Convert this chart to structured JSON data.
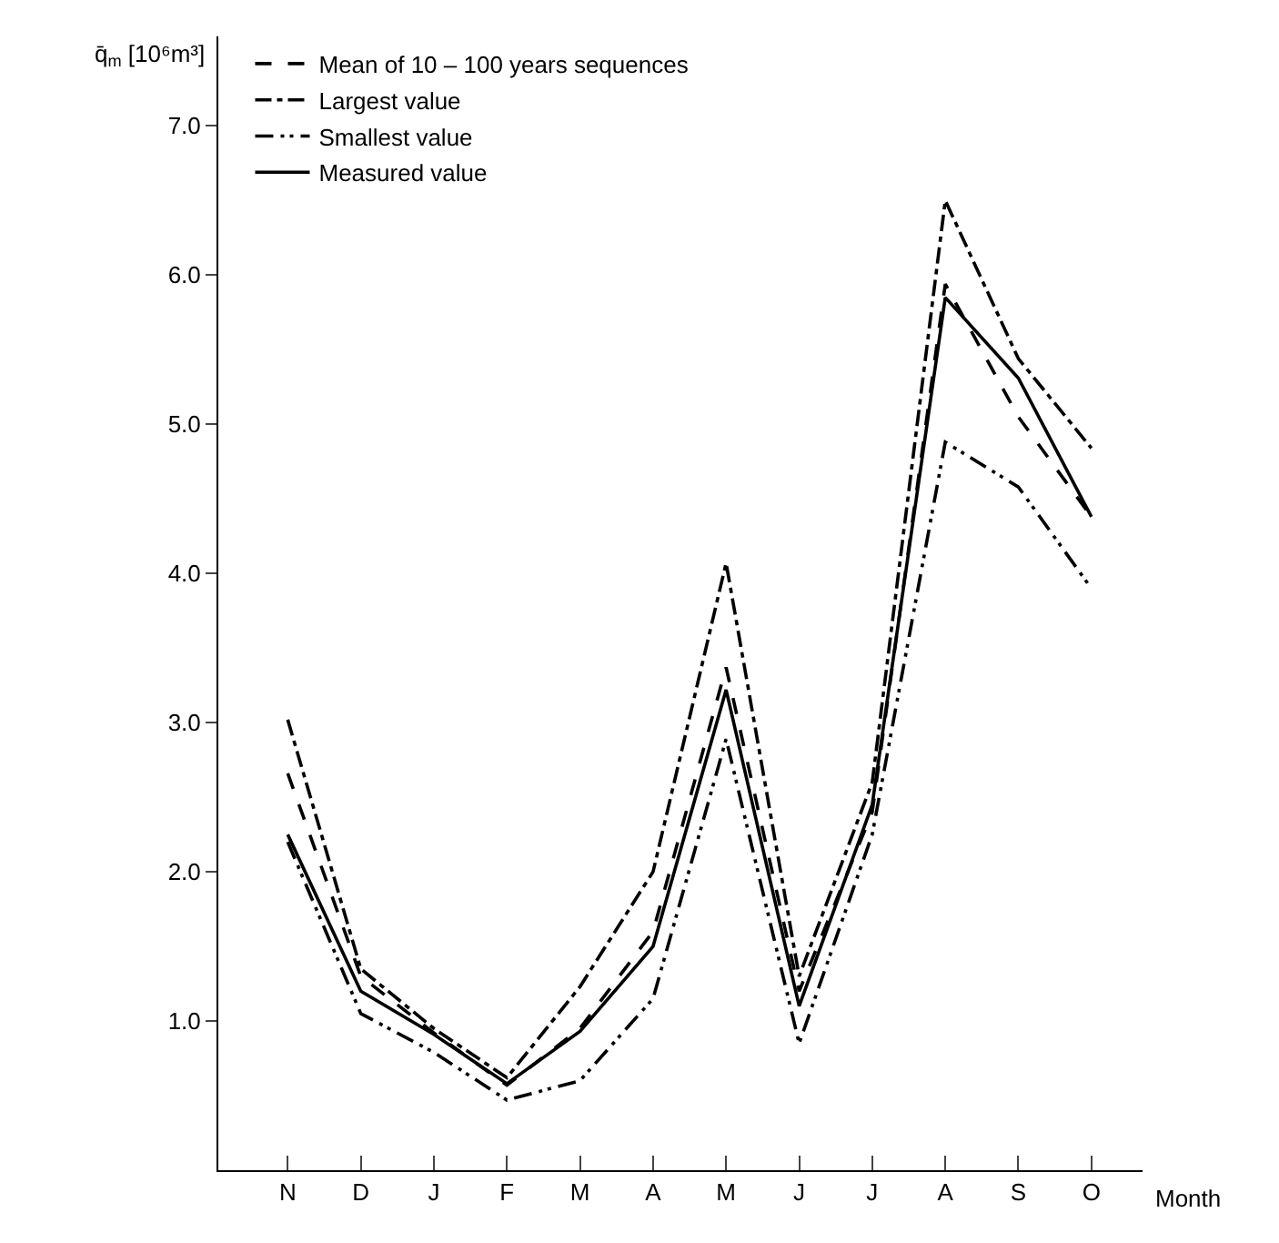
{
  "chart_data": {
    "type": "line",
    "categories": [
      "N",
      "D",
      "J",
      "F",
      "M",
      "A",
      "M",
      "J",
      "J",
      "A",
      "S",
      "O"
    ],
    "xlabel": "Month",
    "ylabel": "q̄$_{m}$ [10⁶m³]",
    "ylim": [
      0,
      7.6
    ],
    "yticks": [
      {
        "value": 1,
        "label": "1.0"
      },
      {
        "value": 2,
        "label": "2.0"
      },
      {
        "value": 3,
        "label": "3.0"
      },
      {
        "value": 4,
        "label": "4.0"
      },
      {
        "value": 5,
        "label": "5.0"
      },
      {
        "value": 6,
        "label": "6.0"
      },
      {
        "value": 7,
        "label": "7.0"
      }
    ],
    "legend": "top left",
    "marker": "none",
    "series": [
      {
        "name": "Mean of 10 – 100 years sequences",
        "color": "#000000",
        "line_style": "dashed",
        "values": [
          2.66,
          1.3,
          0.92,
          0.57,
          0.95,
          1.6,
          3.37,
          1.2,
          2.4,
          5.94,
          5.05,
          4.38
        ]
      },
      {
        "name": "Largest value",
        "color": "#000000",
        "line_style": "dashdot",
        "values": [
          3.02,
          1.35,
          0.95,
          0.62,
          1.23,
          2.0,
          4.07,
          1.3,
          2.6,
          6.5,
          5.44,
          4.84
        ]
      },
      {
        "name": "Smallest value",
        "color": "#000000",
        "line_style": "dashdotdot",
        "values": [
          2.2,
          1.05,
          0.79,
          0.47,
          0.6,
          1.15,
          2.89,
          0.85,
          2.25,
          4.88,
          4.58,
          3.9
        ]
      },
      {
        "name": "Measured value",
        "color": "#000000",
        "line_style": "solid",
        "values": [
          2.25,
          1.2,
          0.91,
          0.58,
          0.93,
          1.5,
          3.22,
          1.1,
          2.45,
          5.85,
          5.31,
          4.38
        ]
      }
    ]
  }
}
